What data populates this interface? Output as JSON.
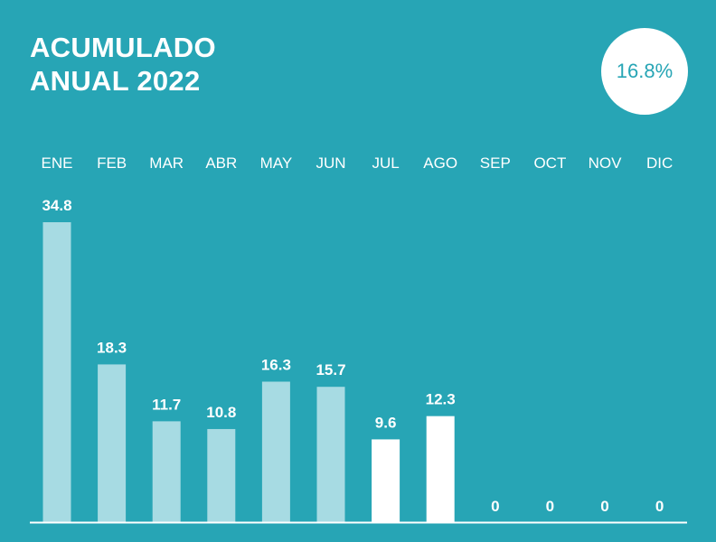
{
  "header": {
    "title_line1": "ACUMULADO",
    "title_line2": "ANUAL 2022",
    "badge_value": "16.8%"
  },
  "colors": {
    "background": "#27a5b5",
    "bar_light": "#a7dbe3",
    "bar_highlight": "#ffffff",
    "text": "#ffffff"
  },
  "chart_data": {
    "type": "bar",
    "title": "ACUMULADO ANUAL 2022",
    "categories": [
      "ENE",
      "FEB",
      "MAR",
      "ABR",
      "MAY",
      "JUN",
      "JUL",
      "AGO",
      "SEP",
      "OCT",
      "NOV",
      "DIC"
    ],
    "values": [
      34.8,
      18.3,
      11.7,
      10.8,
      16.3,
      15.7,
      9.6,
      12.3,
      0,
      0,
      0,
      0
    ],
    "labels": [
      "34.8",
      "18.3",
      "11.7",
      "10.8",
      "16.3",
      "15.7",
      "9.6",
      "12.3",
      "0",
      "0",
      "0",
      "0"
    ],
    "highlighted": [
      "JUL",
      "AGO"
    ],
    "ylim": [
      0,
      34.8
    ],
    "grid": false,
    "category_labels_position": "top"
  }
}
